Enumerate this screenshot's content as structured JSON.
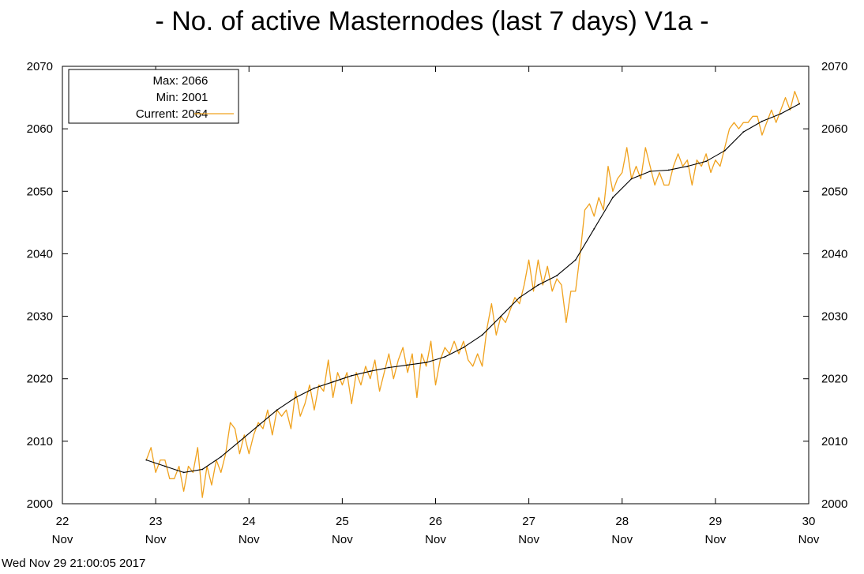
{
  "timestamp": "Wed Nov 29 21:00:05 2017",
  "colors": {
    "raw_series": "#f0a21e",
    "smooth_series": "#000000",
    "axes": "#000000",
    "background": "#ffffff"
  },
  "chart_data": {
    "type": "line",
    "title": "- No. of active Masternodes (last 7 days) V1a -",
    "xlabel": "",
    "ylabel": "",
    "xlim": [
      22,
      30
    ],
    "ylim": [
      2000,
      2070
    ],
    "x_ticks": [
      {
        "value": 22,
        "day": "22",
        "month": "Nov"
      },
      {
        "value": 23,
        "day": "23",
        "month": "Nov"
      },
      {
        "value": 24,
        "day": "24",
        "month": "Nov"
      },
      {
        "value": 25,
        "day": "25",
        "month": "Nov"
      },
      {
        "value": 26,
        "day": "26",
        "month": "Nov"
      },
      {
        "value": 27,
        "day": "27",
        "month": "Nov"
      },
      {
        "value": 28,
        "day": "28",
        "month": "Nov"
      },
      {
        "value": 29,
        "day": "29",
        "month": "Nov"
      },
      {
        "value": 30,
        "day": "30",
        "month": "Nov"
      }
    ],
    "y_ticks": [
      "2000",
      "2010",
      "2020",
      "2030",
      "2040",
      "2050",
      "2060",
      "2070"
    ],
    "y_ticks_mirrored_right": true,
    "grid": false,
    "legend": {
      "position": "top-left",
      "entries": [
        {
          "label": "Max:",
          "value": "2066"
        },
        {
          "label": "Min:",
          "value": "2001"
        },
        {
          "label": "Current:",
          "value": "2064",
          "series_swatch": true
        }
      ]
    },
    "series": [
      {
        "style": "raw",
        "color": "#f0a21e",
        "points": [
          [
            22.9,
            2007
          ],
          [
            22.95,
            2009
          ],
          [
            23.0,
            2005
          ],
          [
            23.05,
            2007
          ],
          [
            23.1,
            2007
          ],
          [
            23.15,
            2004
          ],
          [
            23.2,
            2004
          ],
          [
            23.25,
            2006
          ],
          [
            23.3,
            2002
          ],
          [
            23.35,
            2006
          ],
          [
            23.4,
            2005
          ],
          [
            23.45,
            2009
          ],
          [
            23.5,
            2001
          ],
          [
            23.55,
            2006
          ],
          [
            23.6,
            2003
          ],
          [
            23.65,
            2007
          ],
          [
            23.7,
            2005
          ],
          [
            23.75,
            2008
          ],
          [
            23.8,
            2013
          ],
          [
            23.85,
            2012
          ],
          [
            23.9,
            2008
          ],
          [
            23.95,
            2011
          ],
          [
            24.0,
            2008
          ],
          [
            24.05,
            2011
          ],
          [
            24.1,
            2013
          ],
          [
            24.15,
            2012
          ],
          [
            24.2,
            2015
          ],
          [
            24.25,
            2011
          ],
          [
            24.3,
            2015
          ],
          [
            24.35,
            2014
          ],
          [
            24.4,
            2015
          ],
          [
            24.45,
            2012
          ],
          [
            24.5,
            2018
          ],
          [
            24.55,
            2014
          ],
          [
            24.6,
            2016
          ],
          [
            24.65,
            2019
          ],
          [
            24.7,
            2015
          ],
          [
            24.75,
            2019
          ],
          [
            24.8,
            2018
          ],
          [
            24.85,
            2023
          ],
          [
            24.9,
            2017
          ],
          [
            24.95,
            2021
          ],
          [
            25.0,
            2019
          ],
          [
            25.05,
            2021
          ],
          [
            25.1,
            2016
          ],
          [
            25.15,
            2021
          ],
          [
            25.2,
            2019
          ],
          [
            25.25,
            2022
          ],
          [
            25.3,
            2020
          ],
          [
            25.35,
            2023
          ],
          [
            25.4,
            2018
          ],
          [
            25.45,
            2021
          ],
          [
            25.5,
            2024
          ],
          [
            25.55,
            2020
          ],
          [
            25.6,
            2023
          ],
          [
            25.65,
            2025
          ],
          [
            25.7,
            2021
          ],
          [
            25.75,
            2024
          ],
          [
            25.8,
            2017
          ],
          [
            25.85,
            2024
          ],
          [
            25.9,
            2022
          ],
          [
            25.95,
            2026
          ],
          [
            26.0,
            2019
          ],
          [
            26.05,
            2023
          ],
          [
            26.1,
            2025
          ],
          [
            26.15,
            2024
          ],
          [
            26.2,
            2026
          ],
          [
            26.25,
            2024
          ],
          [
            26.3,
            2026
          ],
          [
            26.35,
            2023
          ],
          [
            26.4,
            2022
          ],
          [
            26.45,
            2024
          ],
          [
            26.5,
            2022
          ],
          [
            26.55,
            2028
          ],
          [
            26.6,
            2032
          ],
          [
            26.65,
            2027
          ],
          [
            26.7,
            2030
          ],
          [
            26.75,
            2029
          ],
          [
            26.8,
            2031
          ],
          [
            26.85,
            2033
          ],
          [
            26.9,
            2032
          ],
          [
            26.95,
            2035
          ],
          [
            27.0,
            2039
          ],
          [
            27.05,
            2034
          ],
          [
            27.1,
            2039
          ],
          [
            27.15,
            2035
          ],
          [
            27.2,
            2038
          ],
          [
            27.25,
            2034
          ],
          [
            27.3,
            2036
          ],
          [
            27.35,
            2035
          ],
          [
            27.4,
            2029
          ],
          [
            27.45,
            2034
          ],
          [
            27.5,
            2034
          ],
          [
            27.55,
            2040
          ],
          [
            27.6,
            2047
          ],
          [
            27.65,
            2048
          ],
          [
            27.7,
            2046
          ],
          [
            27.75,
            2049
          ],
          [
            27.8,
            2047
          ],
          [
            27.85,
            2054
          ],
          [
            27.9,
            2050
          ],
          [
            27.95,
            2052
          ],
          [
            28.0,
            2053
          ],
          [
            28.05,
            2057
          ],
          [
            28.1,
            2052
          ],
          [
            28.15,
            2054
          ],
          [
            28.2,
            2052
          ],
          [
            28.25,
            2057
          ],
          [
            28.3,
            2054
          ],
          [
            28.35,
            2051
          ],
          [
            28.4,
            2053
          ],
          [
            28.45,
            2051
          ],
          [
            28.5,
            2051
          ],
          [
            28.55,
            2054
          ],
          [
            28.6,
            2056
          ],
          [
            28.65,
            2054
          ],
          [
            28.7,
            2055
          ],
          [
            28.75,
            2051
          ],
          [
            28.8,
            2055
          ],
          [
            28.85,
            2054
          ],
          [
            28.9,
            2056
          ],
          [
            28.95,
            2053
          ],
          [
            29.0,
            2055
          ],
          [
            29.05,
            2054
          ],
          [
            29.1,
            2057
          ],
          [
            29.15,
            2060
          ],
          [
            29.2,
            2061
          ],
          [
            29.25,
            2060
          ],
          [
            29.3,
            2061
          ],
          [
            29.35,
            2061
          ],
          [
            29.4,
            2062
          ],
          [
            29.45,
            2062
          ],
          [
            29.5,
            2059
          ],
          [
            29.55,
            2061
          ],
          [
            29.6,
            2063
          ],
          [
            29.65,
            2061
          ],
          [
            29.7,
            2063
          ],
          [
            29.75,
            2065
          ],
          [
            29.8,
            2063
          ],
          [
            29.85,
            2066
          ],
          [
            29.9,
            2064
          ]
        ]
      },
      {
        "style": "smoothed",
        "color": "#000000",
        "points": [
          [
            22.9,
            2007
          ],
          [
            23.1,
            2006
          ],
          [
            23.3,
            2005
          ],
          [
            23.5,
            2005.5
          ],
          [
            23.7,
            2007.5
          ],
          [
            23.9,
            2010
          ],
          [
            24.1,
            2012.5
          ],
          [
            24.3,
            2015
          ],
          [
            24.5,
            2017
          ],
          [
            24.7,
            2018.5
          ],
          [
            24.9,
            2019.5
          ],
          [
            25.1,
            2020.5
          ],
          [
            25.3,
            2021.2
          ],
          [
            25.5,
            2021.8
          ],
          [
            25.7,
            2022.2
          ],
          [
            25.9,
            2022.6
          ],
          [
            26.1,
            2023.5
          ],
          [
            26.3,
            2025
          ],
          [
            26.5,
            2027
          ],
          [
            26.7,
            2030
          ],
          [
            26.9,
            2033
          ],
          [
            27.1,
            2035
          ],
          [
            27.3,
            2036.5
          ],
          [
            27.5,
            2039
          ],
          [
            27.7,
            2044
          ],
          [
            27.9,
            2049
          ],
          [
            28.1,
            2052
          ],
          [
            28.3,
            2053.2
          ],
          [
            28.5,
            2053.4
          ],
          [
            28.7,
            2054
          ],
          [
            28.9,
            2054.8
          ],
          [
            29.1,
            2056.5
          ],
          [
            29.3,
            2059.5
          ],
          [
            29.5,
            2061.2
          ],
          [
            29.7,
            2062.4
          ],
          [
            29.9,
            2064
          ]
        ]
      }
    ]
  }
}
